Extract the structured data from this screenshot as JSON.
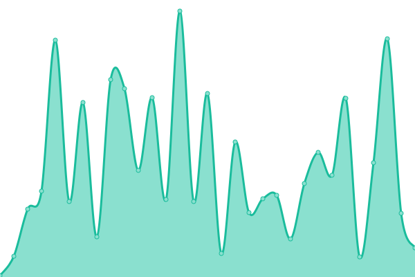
{
  "chart_data": {
    "type": "area",
    "title": "",
    "xlabel": "",
    "ylabel": "",
    "x": [
      0,
      1,
      2,
      3,
      4,
      5,
      6,
      7,
      8,
      9,
      10,
      11,
      12,
      13,
      14,
      15,
      16,
      17,
      18,
      19,
      20,
      21,
      22,
      23,
      24,
      25,
      26,
      27,
      28,
      29,
      30
    ],
    "series": [
      {
        "values": [
          2,
          30,
          98,
          124,
          342,
          109,
          252,
          58,
          285,
          272,
          154,
          259,
          112,
          384,
          109,
          265,
          34,
          195,
          93,
          113,
          118,
          55,
          135,
          180,
          147,
          258,
          29,
          165,
          344,
          92,
          42
        ]
      }
    ],
    "ylim": [
      0,
      400
    ],
    "grid": false,
    "axes_visible": false,
    "legend": "none",
    "colors": {
      "fill": "#8ae0cf",
      "stroke": "#1abc9c",
      "marker_fill": "#8ae0cf",
      "marker_stroke": "#1abc9c"
    }
  }
}
